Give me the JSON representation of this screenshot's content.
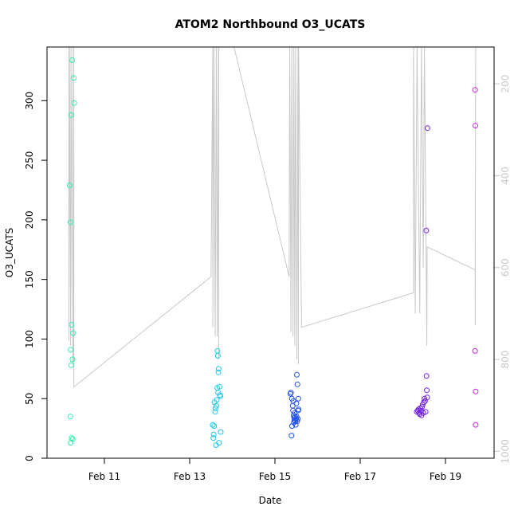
{
  "chart_data": {
    "type": "scatter",
    "title": "ATOM2 Northbound O3_UCATS",
    "xlabel": "Date",
    "ylabel": "O3_UCATS",
    "x_ticks": [
      "Feb 11",
      "Feb 13",
      "Feb 15",
      "Feb 17",
      "Feb 19"
    ],
    "y_ticks": [
      "0",
      "50",
      "100",
      "150",
      "200",
      "250",
      "300"
    ],
    "y2_ticks": [
      "200",
      "400",
      "600",
      "800",
      "1000"
    ],
    "ylim": [
      0,
      345
    ],
    "y2lim": [
      1015,
      120
    ],
    "series": [
      {
        "color": "#2ef0a8",
        "points": [
          {
            "x": "2014-02-10T04:30",
            "y": 229
          },
          {
            "x": "2014-02-10T04:50",
            "y": 198
          },
          {
            "x": "2014-02-10T04:50",
            "y": 35
          },
          {
            "x": "2014-02-10T05:00",
            "y": 13
          },
          {
            "x": "2014-02-10T05:00",
            "y": 91
          },
          {
            "x": "2014-02-10T05:15",
            "y": 288
          },
          {
            "x": "2014-02-10T05:15",
            "y": 78
          },
          {
            "x": "2014-02-10T05:30",
            "y": 17
          },
          {
            "x": "2014-02-10T05:30",
            "y": 112
          },
          {
            "x": "2014-02-10T05:50",
            "y": 334
          },
          {
            "x": "2014-02-10T06:00",
            "y": 83
          },
          {
            "x": "2014-02-10T06:10",
            "y": 16
          },
          {
            "x": "2014-02-10T06:20",
            "y": 105
          },
          {
            "x": "2014-02-10T06:40",
            "y": 319
          },
          {
            "x": "2014-02-10T07:00",
            "y": 298
          }
        ]
      },
      {
        "color": "#1ec8e8",
        "points": [
          {
            "x": "2014-02-13T13:00",
            "y": 28
          },
          {
            "x": "2014-02-13T13:20",
            "y": 17
          },
          {
            "x": "2014-02-13T13:30",
            "y": 20
          },
          {
            "x": "2014-02-13T13:45",
            "y": 27
          },
          {
            "x": "2014-02-13T14:00",
            "y": 47
          },
          {
            "x": "2014-02-13T14:20",
            "y": 39
          },
          {
            "x": "2014-02-13T14:35",
            "y": 42
          },
          {
            "x": "2014-02-13T14:50",
            "y": 11
          },
          {
            "x": "2014-02-13T15:00",
            "y": 44
          },
          {
            "x": "2014-02-13T15:15",
            "y": 49
          },
          {
            "x": "2014-02-13T15:30",
            "y": 59
          },
          {
            "x": "2014-02-13T15:40",
            "y": 90
          },
          {
            "x": "2014-02-13T15:50",
            "y": 86
          },
          {
            "x": "2014-02-13T16:00",
            "y": 55
          },
          {
            "x": "2014-02-13T16:10",
            "y": 72
          },
          {
            "x": "2014-02-13T16:20",
            "y": 75
          },
          {
            "x": "2014-02-13T16:30",
            "y": 13
          },
          {
            "x": "2014-02-13T16:45",
            "y": 60
          },
          {
            "x": "2014-02-13T17:00",
            "y": 53
          },
          {
            "x": "2014-02-13T17:15",
            "y": 52
          },
          {
            "x": "2014-02-13T17:30",
            "y": 22
          }
        ]
      },
      {
        "color": "#2050f0",
        "points": [
          {
            "x": "2014-02-15T08:40",
            "y": 54
          },
          {
            "x": "2014-02-15T09:00",
            "y": 55
          },
          {
            "x": "2014-02-15T09:20",
            "y": 19
          },
          {
            "x": "2014-02-15T09:30",
            "y": 50
          },
          {
            "x": "2014-02-15T09:40",
            "y": 27
          },
          {
            "x": "2014-02-15T10:00",
            "y": 44
          },
          {
            "x": "2014-02-15T10:10",
            "y": 40
          },
          {
            "x": "2014-02-15T10:20",
            "y": 48
          },
          {
            "x": "2014-02-15T10:30",
            "y": 36
          },
          {
            "x": "2014-02-15T10:40",
            "y": 30
          },
          {
            "x": "2014-02-15T10:50",
            "y": 34
          },
          {
            "x": "2014-02-15T11:00",
            "y": 32
          },
          {
            "x": "2014-02-15T11:10",
            "y": 38
          },
          {
            "x": "2014-02-15T11:20",
            "y": 35
          },
          {
            "x": "2014-02-15T11:30",
            "y": 31
          },
          {
            "x": "2014-02-15T11:40",
            "y": 28
          },
          {
            "x": "2014-02-15T11:50",
            "y": 33
          },
          {
            "x": "2014-02-15T12:00",
            "y": 46
          },
          {
            "x": "2014-02-15T12:10",
            "y": 35
          },
          {
            "x": "2014-02-15T12:20",
            "y": 70
          },
          {
            "x": "2014-02-15T12:30",
            "y": 31
          },
          {
            "x": "2014-02-15T12:40",
            "y": 62
          },
          {
            "x": "2014-02-15T12:50",
            "y": 33
          },
          {
            "x": "2014-02-15T13:00",
            "y": 40
          },
          {
            "x": "2014-02-15T13:10",
            "y": 50
          },
          {
            "x": "2014-02-15T13:20",
            "y": 41
          }
        ]
      },
      {
        "color": "#7020e0",
        "points": [
          {
            "x": "2014-02-18T07:50",
            "y": 39
          },
          {
            "x": "2014-02-18T08:20",
            "y": 40
          },
          {
            "x": "2014-02-18T08:50",
            "y": 41
          },
          {
            "x": "2014-02-18T09:10",
            "y": 38
          },
          {
            "x": "2014-02-18T09:30",
            "y": 37
          },
          {
            "x": "2014-02-18T09:50",
            "y": 42
          },
          {
            "x": "2014-02-18T10:10",
            "y": 40
          },
          {
            "x": "2014-02-18T10:30",
            "y": 36
          },
          {
            "x": "2014-02-18T10:50",
            "y": 43
          },
          {
            "x": "2014-02-18T11:10",
            "y": 45
          },
          {
            "x": "2014-02-18T11:30",
            "y": 38
          },
          {
            "x": "2014-02-18T11:50",
            "y": 47
          },
          {
            "x": "2014-02-18T12:10",
            "y": 50
          },
          {
            "x": "2014-02-18T12:30",
            "y": 48
          },
          {
            "x": "2014-02-18T12:50",
            "y": 39
          },
          {
            "x": "2014-02-18T13:10",
            "y": 191
          },
          {
            "x": "2014-02-18T13:20",
            "y": 69
          },
          {
            "x": "2014-02-18T13:30",
            "y": 57
          },
          {
            "x": "2014-02-18T13:40",
            "y": 51
          },
          {
            "x": "2014-02-18T13:50",
            "y": 277
          }
        ]
      },
      {
        "color": "#d020e8",
        "points": [
          {
            "x": "2014-02-19T16:40",
            "y": 309
          },
          {
            "x": "2014-02-19T16:50",
            "y": 279
          },
          {
            "x": "2014-02-19T16:40",
            "y": 90
          },
          {
            "x": "2014-02-19T17:00",
            "y": 56
          },
          {
            "x": "2014-02-19T17:00",
            "y": 28
          }
        ]
      }
    ],
    "gray_line": {
      "color": "#c8c8c8",
      "points": [
        {
          "x": "2014-02-10T04:00",
          "y2": 120
        },
        {
          "x": "2014-02-10T04:00",
          "y2": 760
        },
        {
          "x": "2014-02-10T04:40",
          "y2": 120
        },
        {
          "x": "2014-02-10T05:00",
          "y2": 770
        },
        {
          "x": "2014-02-10T05:40",
          "y2": 120
        },
        {
          "x": "2014-02-10T06:20",
          "y2": 810
        },
        {
          "x": "2014-02-10T06:50",
          "y2": 120
        },
        {
          "x": "2014-02-10T06:50",
          "y2": 860
        },
        {
          "x": "2014-02-13T12:00",
          "y2": 620
        },
        {
          "x": "2014-02-13T13:00",
          "y2": 120
        },
        {
          "x": "2014-02-13T13:00",
          "y2": 730
        },
        {
          "x": "2014-02-13T13:40",
          "y2": 120
        },
        {
          "x": "2014-02-13T14:20",
          "y2": 750
        },
        {
          "x": "2014-02-13T15:00",
          "y2": 120
        },
        {
          "x": "2014-02-13T15:30",
          "y2": 750
        },
        {
          "x": "2014-02-13T16:10",
          "y2": 120
        },
        {
          "x": "2014-02-13T16:20",
          "y2": 800
        },
        {
          "x": "2014-02-13T16:20",
          "y2": 120
        },
        {
          "x": "2014-02-13T17:30",
          "y2": 120
        },
        {
          "x": "2014-02-14T01:00",
          "y2": 120
        },
        {
          "x": "2014-02-15T08:00",
          "y2": 620
        },
        {
          "x": "2014-02-15T08:20",
          "y2": 120
        },
        {
          "x": "2014-02-15T09:00",
          "y2": 740
        },
        {
          "x": "2014-02-15T09:30",
          "y2": 120
        },
        {
          "x": "2014-02-15T10:10",
          "y2": 750
        },
        {
          "x": "2014-02-15T10:40",
          "y2": 120
        },
        {
          "x": "2014-02-15T11:10",
          "y2": 770
        },
        {
          "x": "2014-02-15T11:40",
          "y2": 120
        },
        {
          "x": "2014-02-15T12:20",
          "y2": 800
        },
        {
          "x": "2014-02-15T13:00",
          "y2": 120
        },
        {
          "x": "2014-02-15T13:10",
          "y2": 810
        },
        {
          "x": "2014-02-15T13:20",
          "y2": 120
        },
        {
          "x": "2014-02-15T15:00",
          "y2": 730
        },
        {
          "x": "2014-02-18T06:00",
          "y2": 655
        },
        {
          "x": "2014-02-18T06:00",
          "y2": 120
        },
        {
          "x": "2014-02-18T07:00",
          "y2": 700
        },
        {
          "x": "2014-02-18T08:00",
          "y2": 120
        },
        {
          "x": "2014-02-18T09:30",
          "y2": 700
        },
        {
          "x": "2014-02-18T10:30",
          "y2": 120
        },
        {
          "x": "2014-02-18T11:30",
          "y2": 600
        },
        {
          "x": "2014-02-18T12:10",
          "y2": 120
        },
        {
          "x": "2014-02-18T13:30",
          "y2": 770
        },
        {
          "x": "2014-02-18T13:40",
          "y2": 555
        },
        {
          "x": "2014-02-19T16:40",
          "y2": 605
        },
        {
          "x": "2014-02-19T16:40",
          "y2": 725
        },
        {
          "x": "2014-02-19T17:00",
          "y2": 120
        }
      ]
    }
  }
}
